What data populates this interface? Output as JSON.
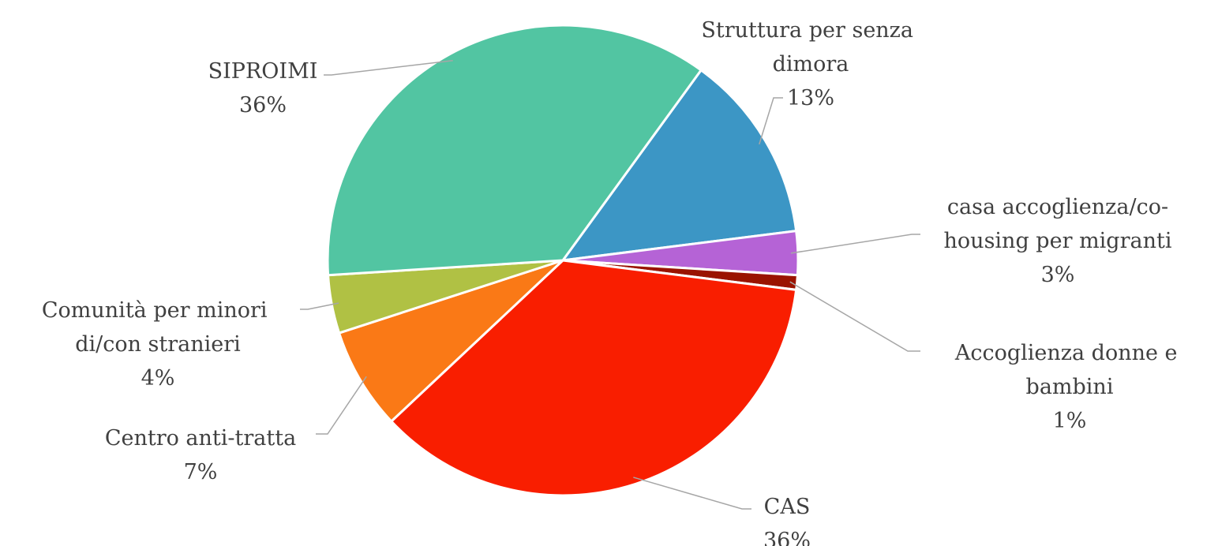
{
  "chart_data": {
    "type": "pie",
    "categories": [
      "Struttura per senza dimora",
      "casa accoglienza/co-housing per migranti",
      "Accoglienza donne e bambini",
      "CAS",
      "Centro anti-tratta",
      "Comunità per minori di/con stranieri",
      "SIPROIMI"
    ],
    "values": [
      13,
      3,
      1,
      36,
      7,
      4,
      36
    ],
    "value_labels": [
      "13%",
      "3%",
      "1%",
      "36%",
      "7%",
      "4%",
      "36%"
    ],
    "colors": [
      "#3c96c5",
      "#b563d6",
      "#9a1300",
      "#f91e00",
      "#fa7916",
      "#b0c144",
      "#52c5a2"
    ]
  }
}
